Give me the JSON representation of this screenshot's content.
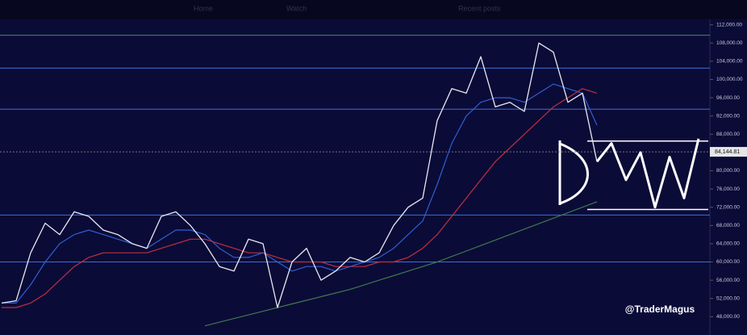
{
  "nav": [
    "Home",
    "Watch",
    "Recent posts"
  ],
  "chart_data": {
    "type": "line",
    "watermark": "@TraderMagus",
    "ylim": [
      47000,
      113000
    ],
    "yticks": [
      {
        "value": 112000,
        "label": "112,000.00"
      },
      {
        "value": 108000,
        "label": "108,000.00"
      },
      {
        "value": 104000,
        "label": "104,000.00"
      },
      {
        "value": 100000,
        "label": "100,000.00"
      },
      {
        "value": 96000,
        "label": "96,000.00"
      },
      {
        "value": 92000,
        "label": "92,000.00"
      },
      {
        "value": 88000,
        "label": "88,000.00"
      },
      {
        "value": 80000,
        "label": "80,000.00"
      },
      {
        "value": 76000,
        "label": "76,000.00"
      },
      {
        "value": 72000,
        "label": "72,000.00"
      },
      {
        "value": 68000,
        "label": "68,000.00"
      },
      {
        "value": 64000,
        "label": "64,000.00"
      },
      {
        "value": 60000,
        "label": "60,000.00"
      },
      {
        "value": 56000,
        "label": "56,000.00"
      },
      {
        "value": 52000,
        "label": "52,000.00"
      },
      {
        "value": 48000,
        "label": "48,000.00"
      }
    ],
    "last_price": 84144.81,
    "last_price_label": "84,144.81",
    "levels": [
      {
        "value": 109700,
        "color": "#3f8f5a"
      },
      {
        "value": 102500,
        "color": "#3d6fd0"
      },
      {
        "value": 93500,
        "color": "#3d6fd0"
      },
      {
        "value": 70300,
        "color": "#3d6fd0"
      },
      {
        "value": 60000,
        "color": "#3d6fd0"
      },
      {
        "value": 86500,
        "color": "#ffffff"
      },
      {
        "value": 71500,
        "color": "#ffffff"
      }
    ],
    "series": [
      {
        "color": "#e8e8f0",
        "width": 1.3,
        "values": [
          51000,
          51500,
          62000,
          68500,
          66000,
          71000,
          70000,
          67000,
          66000,
          64000,
          63000,
          70000,
          71000,
          68000,
          64000,
          59000,
          58000,
          65000,
          64000,
          50000,
          60000,
          63000,
          56000,
          58000,
          61000,
          60000,
          62000,
          68000,
          72000,
          74000,
          91000,
          98000,
          97000,
          105000,
          94000,
          95000,
          93000,
          108000,
          106000,
          95000,
          97000,
          82000,
          null,
          null,
          null,
          null,
          null,
          null,
          null
        ]
      },
      {
        "color": "#2f5fd0",
        "width": 1.2,
        "values": [
          51000,
          51000,
          55000,
          60000,
          64000,
          66000,
          67000,
          66000,
          65000,
          64000,
          63000,
          65000,
          67000,
          67000,
          66000,
          63000,
          61000,
          61000,
          62000,
          60000,
          58000,
          59000,
          59000,
          58000,
          59000,
          60000,
          61000,
          63000,
          66000,
          69000,
          77000,
          86000,
          92000,
          95000,
          96000,
          96000,
          95000,
          97000,
          99000,
          98000,
          97000,
          90000,
          null,
          null,
          null,
          null,
          null,
          null,
          null
        ]
      },
      {
        "color": "#c0303a",
        "width": 1.2,
        "values": [
          50000,
          50000,
          51000,
          53000,
          56000,
          59000,
          61000,
          62000,
          62000,
          62000,
          62000,
          63000,
          64000,
          65000,
          65000,
          64000,
          63000,
          62000,
          62000,
          61000,
          60000,
          60000,
          60000,
          59000,
          59000,
          59000,
          60000,
          60000,
          61000,
          63000,
          66000,
          70000,
          74000,
          78000,
          82000,
          85000,
          88000,
          91000,
          94000,
          96000,
          98000,
          97000,
          null,
          null,
          null,
          null,
          null,
          null,
          null
        ]
      },
      {
        "color": "#3f7a4a",
        "width": 1.2,
        "values": [
          null,
          null,
          null,
          null,
          null,
          null,
          null,
          null,
          null,
          null,
          null,
          null,
          null,
          null,
          46000,
          46800,
          47600,
          48400,
          49200,
          50000,
          50800,
          51600,
          52400,
          53200,
          54000,
          55000,
          56000,
          57000,
          58000,
          59000,
          60000,
          61200,
          62400,
          63600,
          64800,
          66000,
          67200,
          68400,
          69600,
          70800,
          72000,
          73200,
          null,
          null,
          null,
          null,
          null,
          null,
          null
        ]
      },
      {
        "color": "#ffffff",
        "width": 3,
        "values": [
          null,
          null,
          null,
          null,
          null,
          null,
          null,
          null,
          null,
          null,
          null,
          null,
          null,
          null,
          null,
          null,
          null,
          null,
          null,
          null,
          null,
          null,
          null,
          null,
          null,
          null,
          null,
          null,
          null,
          null,
          null,
          null,
          null,
          null,
          null,
          null,
          null,
          null,
          null,
          null,
          null,
          82000,
          86000,
          78000,
          84000,
          72000,
          83000,
          74000,
          87000
        ]
      }
    ]
  }
}
